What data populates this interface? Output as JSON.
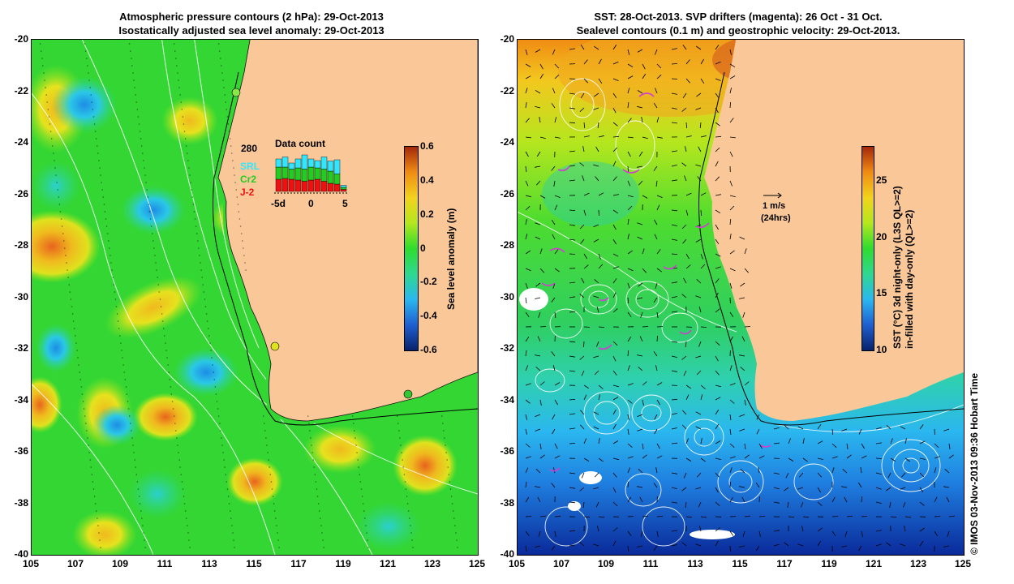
{
  "left": {
    "title_line1": "Atmospheric pressure contours (2 hPa): 29-Oct-2013",
    "title_line2": "Isostatically adjusted sea level anomaly: 29-Oct-2013",
    "y_ticks": [
      "-20",
      "-22",
      "-24",
      "-26",
      "-28",
      "-30",
      "-32",
      "-34",
      "-36",
      "-38",
      "-40"
    ],
    "x_ticks": [
      "105",
      "107",
      "109",
      "111",
      "113",
      "115",
      "117",
      "119",
      "121",
      "123",
      "125"
    ],
    "colorbar": {
      "ticks": [
        "0.6",
        "0.4",
        "0.2",
        "0",
        "-0.2",
        "-0.4",
        "-0.6"
      ],
      "label": "Sea level anomaly (m)",
      "range": [
        -0.6,
        0.6
      ],
      "colors": [
        "#08216b",
        "#1f5fd0",
        "#2bb7ef",
        "#2fd890",
        "#2fdc2f",
        "#b4e61e",
        "#f3d21e",
        "#f08c14",
        "#a5280a"
      ]
    },
    "inset": {
      "count": "280",
      "title": "Data count",
      "legend": [
        {
          "name": "SRL",
          "color": "#33e6ff"
        },
        {
          "name": "Cr2",
          "color": "#22cc22"
        },
        {
          "name": "J-2",
          "color": "#ee1111"
        }
      ],
      "x_ticks": [
        "-5d",
        "0",
        "5"
      ],
      "bars": [
        {
          "j2": 0.3,
          "cr2": 0.3,
          "srl": 0.2
        },
        {
          "j2": 0.32,
          "cr2": 0.28,
          "srl": 0.25
        },
        {
          "j2": 0.3,
          "cr2": 0.25,
          "srl": 0.15
        },
        {
          "j2": 0.28,
          "cr2": 0.3,
          "srl": 0.22
        },
        {
          "j2": 0.25,
          "cr2": 0.3,
          "srl": 0.35
        },
        {
          "j2": 0.28,
          "cr2": 0.32,
          "srl": 0.2
        },
        {
          "j2": 0.3,
          "cr2": 0.28,
          "srl": 0.18
        },
        {
          "j2": 0.25,
          "cr2": 0.3,
          "srl": 0.3
        },
        {
          "j2": 0.2,
          "cr2": 0.3,
          "srl": 0.25
        },
        {
          "j2": 0.18,
          "cr2": 0.25,
          "srl": 0.35
        },
        {
          "j2": 0.05,
          "cr2": 0.05,
          "srl": 0.05
        }
      ]
    }
  },
  "right": {
    "title_line1": "SST: 28-Oct-2013. SVP drifters (magenta): 26 Oct - 31 Oct.",
    "title_line2": "Sealevel contours (0.1 m) and geostrophic velocity: 29-Oct-2013.",
    "y_ticks": [
      "-20",
      "-22",
      "-24",
      "-26",
      "-28",
      "-30",
      "-32",
      "-34",
      "-36",
      "-38",
      "-40"
    ],
    "x_ticks": [
      "105",
      "107",
      "109",
      "111",
      "113",
      "115",
      "117",
      "119",
      "121",
      "123",
      "125"
    ],
    "colorbar": {
      "ticks": [
        "25",
        "20",
        "15",
        "10"
      ],
      "label_line1": "SST (°C) 3d night-only (L3S QL>=2)",
      "label_line2": "in-filled with day-only (QL>=2)",
      "range": [
        10,
        28
      ],
      "colors": [
        "#08216b",
        "#1f5fd0",
        "#2bb7ef",
        "#2fd890",
        "#2fdc2f",
        "#b4e61e",
        "#f3d21e",
        "#f08c14",
        "#a5280a"
      ]
    },
    "velocity_scale": {
      "label": "1 m/s",
      "sublabel": "(24hrs)"
    }
  },
  "credit": "© IMOS 03-Nov-2013 09:36 Hobart Time",
  "colors": {
    "land": "#fac898",
    "contour": "#ffffff",
    "coast": "#000000"
  }
}
